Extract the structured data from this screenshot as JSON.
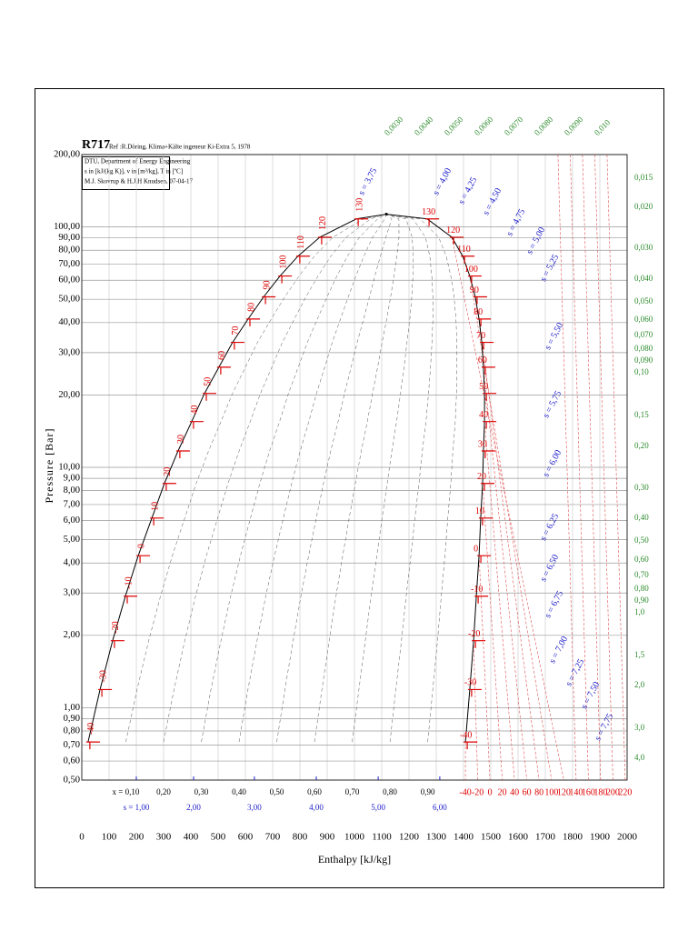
{
  "chart_data": {
    "type": "line",
    "title": "R717",
    "subtitle": "Ref :R.Döring, Klima+Kälte ingeneur Ki-Extra 5, 1978",
    "info_box": [
      "DTU, Department of Energy Engineering",
      "s in [kJ/(kg K)], v in [m³/kg], T in [ºC]",
      "M.J. Skovrup & H.J.H Knudsen, 07-04-17"
    ],
    "x_label": "Enthalpy [kJ/kg]",
    "y_label": "Pressure [Bar]",
    "log_y": true,
    "grid": true,
    "xlim": [
      0,
      2000
    ],
    "xticks": [
      0,
      100,
      200,
      300,
      400,
      500,
      600,
      700,
      800,
      900,
      1000,
      1100,
      1200,
      1300,
      1400,
      1500,
      1600,
      1700,
      1800,
      1900,
      2000
    ],
    "ylim": [
      0.5,
      200
    ],
    "yticks": [
      {
        "value": 200,
        "label": "200,00"
      },
      {
        "value": 100,
        "label": "100,00"
      },
      {
        "value": 90,
        "label": "90,00"
      },
      {
        "value": 80,
        "label": "80,00"
      },
      {
        "value": 70,
        "label": "70,00"
      },
      {
        "value": 60,
        "label": "60,00"
      },
      {
        "value": 50,
        "label": "50,00"
      },
      {
        "value": 40,
        "label": "40,00"
      },
      {
        "value": 30,
        "label": "30,00"
      },
      {
        "value": 20,
        "label": "20,00"
      },
      {
        "value": 10,
        "label": "10,00"
      },
      {
        "value": 9,
        "label": "9,00"
      },
      {
        "value": 8,
        "label": "8,00"
      },
      {
        "value": 7,
        "label": "7,00"
      },
      {
        "value": 6,
        "label": "6,00"
      },
      {
        "value": 5,
        "label": "5,00"
      },
      {
        "value": 4,
        "label": "4,00"
      },
      {
        "value": 3,
        "label": "3,00"
      },
      {
        "value": 2,
        "label": "2,00"
      },
      {
        "value": 1,
        "label": "1,00"
      },
      {
        "value": 0.9,
        "label": "0,90"
      },
      {
        "value": 0.8,
        "label": "0,80"
      },
      {
        "value": 0.7,
        "label": "0,70"
      },
      {
        "value": 0.6,
        "label": "0,60"
      },
      {
        "value": 0.5,
        "label": "0,50"
      }
    ],
    "temperatures": [
      -40,
      -30,
      -20,
      -10,
      0,
      10,
      20,
      30,
      40,
      50,
      60,
      70,
      80,
      90,
      100,
      110,
      120,
      130
    ],
    "series": [
      {
        "color": "#000000",
        "x": [
          23,
          67,
          113,
          160,
          207,
          257,
          303,
          353,
          403,
          450,
          503,
          553,
          610,
          667,
          727,
          793,
          873,
          1007
        ],
        "values": [
          0.72,
          1.19,
          1.9,
          2.91,
          4.29,
          6.15,
          8.57,
          11.7,
          15.5,
          20.3,
          26.1,
          33.1,
          41.4,
          51.2,
          62.5,
          75.6,
          90.6,
          108
        ]
      },
      {
        "color": "#000000",
        "x": [
          1407,
          1423,
          1437,
          1447,
          1457,
          1463,
          1470,
          1473,
          1477,
          1477,
          1473,
          1467,
          1457,
          1443,
          1423,
          1397,
          1357,
          1267
        ],
        "values": [
          0.72,
          1.19,
          1.9,
          2.91,
          4.29,
          6.15,
          8.57,
          11.7,
          15.5,
          20.3,
          26.1,
          33.1,
          41.4,
          51.2,
          62.5,
          75.6,
          90.6,
          108
        ]
      }
    ],
    "critical_point": {
      "x": 1117,
      "value": 113
    },
    "quality_lines": [
      {
        "value": 0.1,
        "label": "x = 0,10"
      },
      {
        "value": 0.2,
        "label": "0,20"
      },
      {
        "value": 0.3,
        "label": "0,30"
      },
      {
        "value": 0.4,
        "label": "0,40"
      },
      {
        "value": 0.5,
        "label": "0,50"
      },
      {
        "value": 0.6,
        "label": "0,60"
      },
      {
        "value": 0.7,
        "label": "0,70"
      },
      {
        "value": 0.8,
        "label": "0,80"
      },
      {
        "value": 0.9,
        "label": "0,90"
      }
    ],
    "superheat_isotherms": [
      {
        "value": -40,
        "h": 1407
      },
      {
        "value": -20,
        "h": 1452
      },
      {
        "value": 0,
        "h": 1497
      },
      {
        "value": 20,
        "h": 1542
      },
      {
        "value": 40,
        "h": 1587
      },
      {
        "value": 60,
        "h": 1632
      },
      {
        "value": 80,
        "h": 1677
      },
      {
        "value": 100,
        "h": 1723
      },
      {
        "value": 120,
        "h": 1768
      },
      {
        "value": 140,
        "h": 1813
      },
      {
        "value": 160,
        "h": 1858
      },
      {
        "value": 180,
        "h": 1903
      },
      {
        "value": 200,
        "h": 1948
      },
      {
        "value": 220,
        "h": 1993
      }
    ],
    "entropy_scale": [
      {
        "value": 1,
        "label": "s = 1,00",
        "h": 200
      },
      {
        "value": 2,
        "label": "2,00",
        "h": 410
      },
      {
        "value": 3,
        "label": "3,00",
        "h": 633
      },
      {
        "value": 4,
        "label": "4,00",
        "h": 860
      },
      {
        "value": 5,
        "label": "5,00",
        "h": 1087
      },
      {
        "value": 6,
        "label": "6,00",
        "h": 1313
      }
    ],
    "isentrope_labels": [
      "s = 3,75",
      "s = 4,00",
      "s = 4,25",
      "s = 4,50",
      "s = 4,75",
      "s = 5,00",
      "s = 5,25",
      "s = 5,50",
      "s = 5,75",
      "s = 6,00",
      "s = 6,25",
      "s = 6,50",
      "s = 6,75",
      "s = 7,00",
      "s = 7,25",
      "s = 7,50",
      "s = 7,75"
    ],
    "isochore_labels_top": [
      "0,0030",
      "0,0040",
      "0,0050",
      "0,0060",
      "0,0070",
      "0,0080",
      "0,0090",
      "0,010"
    ],
    "isochore_labels_right": [
      "0,015",
      "0,020",
      "0,030",
      "0,040",
      "0,050",
      "0,060",
      "0,070",
      "0,080",
      "0,090",
      "0,10",
      "0,15",
      "0,20",
      "0,30",
      "0,40",
      "0,50",
      "0,60",
      "0,70",
      "0,80",
      "0,90",
      "1,0",
      "1,5",
      "2,0",
      "3,0",
      "4,0"
    ]
  }
}
